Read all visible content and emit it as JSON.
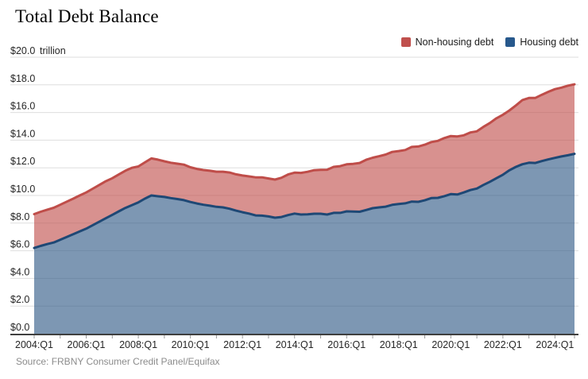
{
  "header": {
    "title": "Total Debt Balance"
  },
  "legend": [
    {
      "label": "Non-housing debt",
      "color": "#c0504d"
    },
    {
      "label": "Housing debt",
      "color": "#27588c"
    }
  ],
  "source": {
    "text": "Source: FRBNY Consumer Credit Panel/Equifax"
  },
  "y_axis": {
    "unit_label": "trillion",
    "labels": [
      "$0.0",
      "$2.0",
      "$4.0",
      "$6.0",
      "$8.0",
      "$10.0",
      "$12.0",
      "$14.0",
      "$16.0",
      "$18.0",
      "$20.0"
    ]
  },
  "x_axis": {
    "labels": [
      "2004:Q1",
      "2006:Q1",
      "2008:Q1",
      "2010:Q1",
      "2012:Q1",
      "2014:Q1",
      "2016:Q1",
      "2018:Q1",
      "2020:Q1",
      "2022:Q1",
      "2024:Q1"
    ]
  },
  "chart_data": {
    "type": "area",
    "stacked": true,
    "title": "Total Debt Balance",
    "ylabel": "trillion",
    "ylim": [
      0,
      20
    ],
    "y_step": 2,
    "grid": true,
    "legend_position": "top-right",
    "x_start": "2004:Q1",
    "x_end": "2024:Q4",
    "x_frequency": "quarterly",
    "x_tick_labels": [
      "2004:Q1",
      "2006:Q1",
      "2008:Q1",
      "2010:Q1",
      "2012:Q1",
      "2014:Q1",
      "2016:Q1",
      "2018:Q1",
      "2020:Q1",
      "2022:Q1",
      "2024:Q1"
    ],
    "series": [
      {
        "name": "Housing debt",
        "fill_color": "#275280",
        "fill_opacity": 0.6,
        "line_color": "#1e4875",
        "values": [
          6.2,
          6.35,
          6.48,
          6.6,
          6.8,
          7.0,
          7.2,
          7.4,
          7.6,
          7.85,
          8.1,
          8.35,
          8.6,
          8.85,
          9.1,
          9.3,
          9.5,
          9.77,
          10.0,
          9.94,
          9.89,
          9.81,
          9.74,
          9.66,
          9.53,
          9.42,
          9.33,
          9.26,
          9.18,
          9.14,
          9.04,
          8.9,
          8.79,
          8.69,
          8.56,
          8.54,
          8.48,
          8.39,
          8.44,
          8.58,
          8.69,
          8.62,
          8.64,
          8.68,
          8.68,
          8.62,
          8.74,
          8.74,
          8.85,
          8.84,
          8.82,
          8.95,
          9.08,
          9.14,
          9.19,
          9.32,
          9.38,
          9.43,
          9.56,
          9.54,
          9.65,
          9.81,
          9.83,
          9.95,
          10.1,
          10.07,
          10.22,
          10.39,
          10.5,
          10.76,
          10.99,
          11.25,
          11.5,
          11.82,
          12.07,
          12.26,
          12.37,
          12.35,
          12.49,
          12.61,
          12.72,
          12.82,
          12.91,
          13.01
        ]
      },
      {
        "name": "Non-housing debt",
        "fill_color": "#c04d4a",
        "fill_opacity": 0.62,
        "line_color": "#bf4d49",
        "values": [
          2.45,
          2.47,
          2.49,
          2.51,
          2.53,
          2.55,
          2.57,
          2.6,
          2.62,
          2.64,
          2.66,
          2.68,
          2.65,
          2.67,
          2.69,
          2.7,
          2.6,
          2.62,
          2.68,
          2.65,
          2.58,
          2.56,
          2.56,
          2.57,
          2.51,
          2.5,
          2.51,
          2.53,
          2.54,
          2.58,
          2.62,
          2.63,
          2.65,
          2.69,
          2.75,
          2.77,
          2.75,
          2.76,
          2.84,
          2.94,
          2.96,
          3.01,
          3.07,
          3.15,
          3.17,
          3.24,
          3.33,
          3.38,
          3.4,
          3.45,
          3.53,
          3.63,
          3.65,
          3.7,
          3.77,
          3.83,
          3.83,
          3.86,
          3.95,
          4.0,
          4.02,
          4.05,
          4.12,
          4.2,
          4.2,
          4.2,
          4.13,
          4.17,
          4.14,
          4.2,
          4.25,
          4.33,
          4.34,
          4.33,
          4.44,
          4.64,
          4.68,
          4.71,
          4.8,
          4.89,
          4.97,
          4.98,
          5.03,
          5.03
        ]
      }
    ]
  }
}
